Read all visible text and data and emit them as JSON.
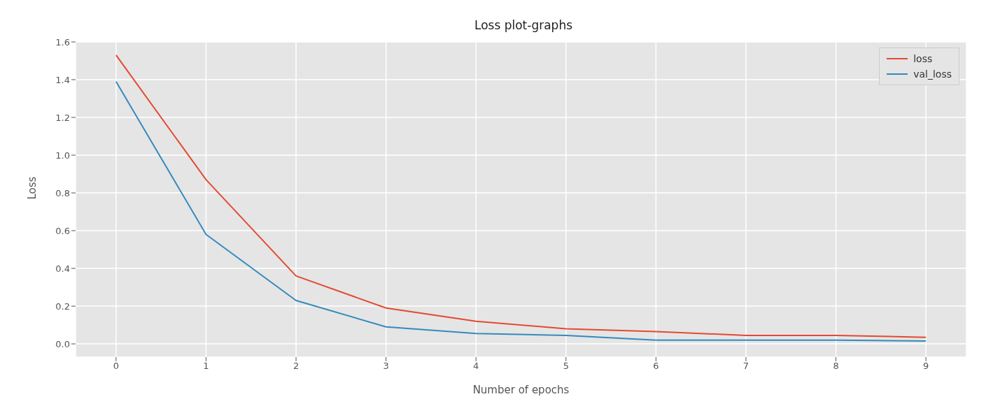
{
  "chart_data": {
    "type": "line",
    "title": "Loss plot-graphs",
    "xlabel": "Number of epochs",
    "ylabel": "Loss",
    "x": [
      0,
      1,
      2,
      3,
      4,
      5,
      6,
      7,
      8,
      9
    ],
    "series": [
      {
        "name": "loss",
        "color": "#e24a33",
        "values": [
          1.53,
          0.87,
          0.36,
          0.19,
          0.12,
          0.08,
          0.065,
          0.045,
          0.045,
          0.035
        ]
      },
      {
        "name": "val_loss",
        "color": "#348abd",
        "values": [
          1.39,
          0.58,
          0.23,
          0.09,
          0.055,
          0.045,
          0.02,
          0.02,
          0.02,
          0.015
        ]
      }
    ],
    "xlim": [
      -0.45,
      9.45
    ],
    "xticks": [
      0,
      1,
      2,
      3,
      4,
      5,
      6,
      7,
      8,
      9
    ],
    "ylim": [
      -0.07,
      1.6
    ],
    "yticks": [
      {
        "value": 0,
        "label": "0.0"
      },
      0.2,
      0.4,
      0.6,
      0.8,
      {
        "value": 1,
        "label": "1.0"
      },
      1.2,
      1.4,
      1.6
    ],
    "grid": true,
    "legend": "top right",
    "marker": "none",
    "line_style": "solid"
  }
}
